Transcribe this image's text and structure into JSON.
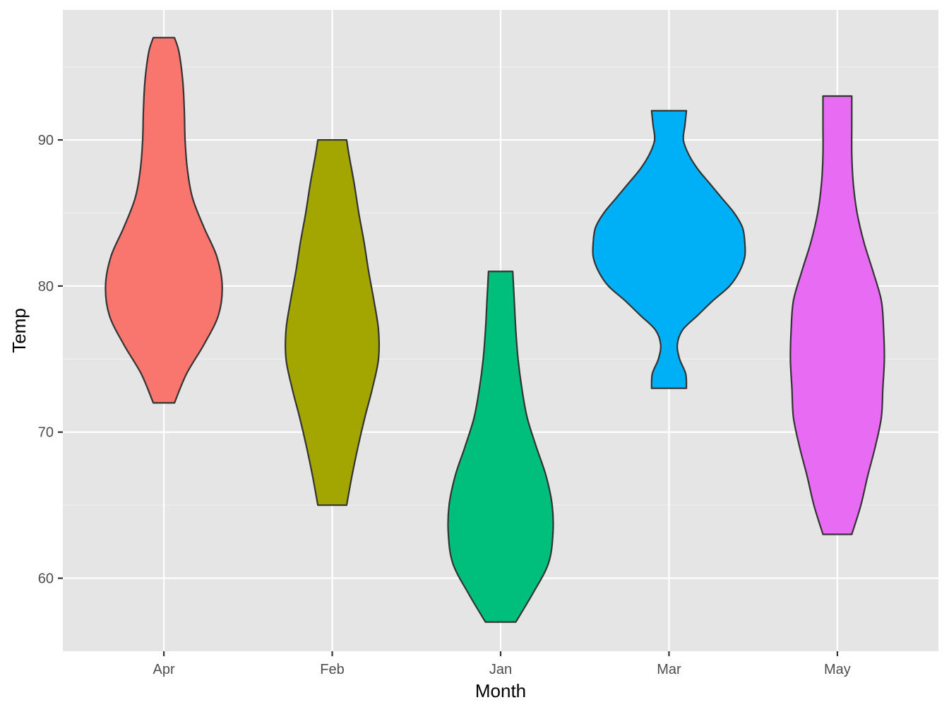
{
  "chart_data": {
    "type": "violin",
    "xlabel": "Month",
    "ylabel": "Temp",
    "categories": [
      "Apr",
      "Feb",
      "Jan",
      "Mar",
      "May"
    ],
    "ylim": [
      55.0,
      98.9
    ],
    "yticks": [
      60,
      70,
      80,
      90
    ],
    "grid": true,
    "legend": "none",
    "series": [
      {
        "category": "Apr",
        "color": "#F8766D",
        "min": 72,
        "max": 97,
        "profile": [
          [
            72,
            0.14
          ],
          [
            74,
            0.3
          ],
          [
            76,
            0.53
          ],
          [
            78,
            0.72
          ],
          [
            80,
            0.77
          ],
          [
            82,
            0.7
          ],
          [
            84,
            0.53
          ],
          [
            86,
            0.38
          ],
          [
            88,
            0.31
          ],
          [
            90,
            0.28
          ],
          [
            92,
            0.27
          ],
          [
            94,
            0.25
          ],
          [
            96,
            0.2
          ],
          [
            97,
            0.14
          ]
        ]
      },
      {
        "category": "Feb",
        "color": "#A3A500",
        "min": 65,
        "max": 90,
        "profile": [
          [
            65,
            0.19
          ],
          [
            67,
            0.26
          ],
          [
            69,
            0.34
          ],
          [
            71,
            0.43
          ],
          [
            73,
            0.53
          ],
          [
            75,
            0.61
          ],
          [
            77,
            0.61
          ],
          [
            79,
            0.55
          ],
          [
            81,
            0.48
          ],
          [
            83,
            0.42
          ],
          [
            85,
            0.35
          ],
          [
            87,
            0.29
          ],
          [
            89,
            0.22
          ],
          [
            90,
            0.19
          ]
        ]
      },
      {
        "category": "Jan",
        "color": "#00BF7D",
        "min": 57,
        "max": 81,
        "profile": [
          [
            57,
            0.2
          ],
          [
            59,
            0.43
          ],
          [
            61,
            0.63
          ],
          [
            63,
            0.69
          ],
          [
            65,
            0.68
          ],
          [
            67,
            0.6
          ],
          [
            69,
            0.47
          ],
          [
            71,
            0.35
          ],
          [
            73,
            0.28
          ],
          [
            75,
            0.23
          ],
          [
            77,
            0.2
          ],
          [
            79,
            0.18
          ],
          [
            81,
            0.16
          ]
        ]
      },
      {
        "category": "Mar",
        "color": "#00B0F6",
        "min": 73,
        "max": 92,
        "profile": [
          [
            73,
            0.23
          ],
          [
            74,
            0.22
          ],
          [
            75,
            0.14
          ],
          [
            76,
            0.11
          ],
          [
            77,
            0.18
          ],
          [
            78,
            0.38
          ],
          [
            79,
            0.58
          ],
          [
            80,
            0.8
          ],
          [
            81,
            0.93
          ],
          [
            82,
            1.0
          ],
          [
            83,
            1.0
          ],
          [
            84,
            0.97
          ],
          [
            85,
            0.86
          ],
          [
            86,
            0.7
          ],
          [
            87,
            0.54
          ],
          [
            88,
            0.38
          ],
          [
            89,
            0.26
          ],
          [
            90,
            0.19
          ],
          [
            91,
            0.21
          ],
          [
            92,
            0.23
          ]
        ]
      },
      {
        "category": "May",
        "color": "#E76BF3",
        "min": 63,
        "max": 93,
        "profile": [
          [
            63,
            0.19
          ],
          [
            65,
            0.31
          ],
          [
            67,
            0.4
          ],
          [
            69,
            0.5
          ],
          [
            71,
            0.58
          ],
          [
            73,
            0.6
          ],
          [
            75,
            0.62
          ],
          [
            77,
            0.61
          ],
          [
            79,
            0.58
          ],
          [
            81,
            0.47
          ],
          [
            83,
            0.35
          ],
          [
            85,
            0.26
          ],
          [
            87,
            0.21
          ],
          [
            89,
            0.19
          ],
          [
            91,
            0.19
          ],
          [
            93,
            0.19
          ]
        ]
      }
    ]
  }
}
